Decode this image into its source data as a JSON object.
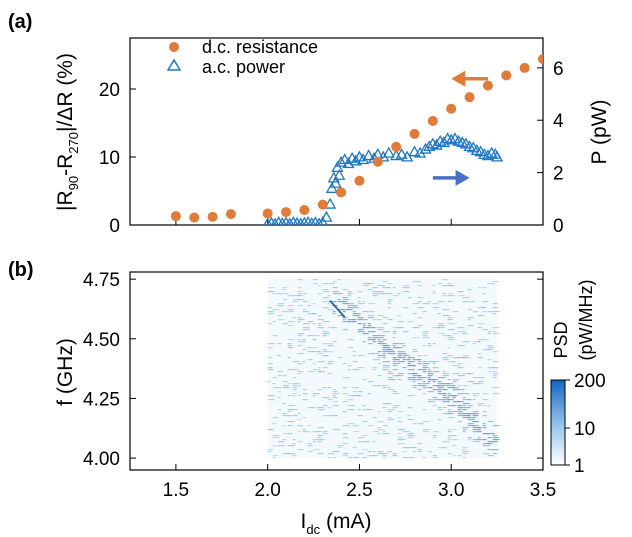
{
  "chart_data": [
    {
      "panel_label": "(a)",
      "type": "scatter",
      "xlim": [
        1.25,
        3.5
      ],
      "ylim_left": [
        0,
        27.5
      ],
      "ylim_right": [
        0,
        7.14
      ],
      "ylabel_left": {
        "main": "|R",
        "sub1": "90",
        "mid": "-R",
        "sub2": "270",
        "tail": "|/ΔR (%)"
      },
      "ylabel_right": "P (pW)",
      "yticks_left": [
        "0",
        "10",
        "20"
      ],
      "yticks_right": [
        "0",
        "2",
        "4",
        "6"
      ],
      "series": [
        {
          "name": "d.c. resistance",
          "axis": "left",
          "color": "#e07b39",
          "marker": "filled-circle",
          "x": [
            1.5,
            1.6,
            1.7,
            1.8,
            2.0,
            2.1,
            2.2,
            2.3,
            2.4,
            2.5,
            2.6,
            2.7,
            2.8,
            2.9,
            3.0,
            3.1,
            3.2,
            3.3,
            3.4,
            3.5
          ],
          "y": [
            1.3,
            1.1,
            1.2,
            1.6,
            1.7,
            1.9,
            2.2,
            3.0,
            4.8,
            6.5,
            9.3,
            11.5,
            13.4,
            15.3,
            17.1,
            18.8,
            20.5,
            22.0,
            23.1,
            24.4
          ]
        },
        {
          "name": "a.c. power",
          "axis": "right",
          "color": "#1f77c4",
          "marker": "open-triangle",
          "x": [
            2.0,
            2.02,
            2.04,
            2.06,
            2.08,
            2.1,
            2.12,
            2.14,
            2.16,
            2.18,
            2.2,
            2.22,
            2.24,
            2.26,
            2.28,
            2.3,
            2.32,
            2.34,
            2.35,
            2.36,
            2.37,
            2.38,
            2.39,
            2.4,
            2.42,
            2.44,
            2.46,
            2.48,
            2.5,
            2.52,
            2.55,
            2.58,
            2.6,
            2.63,
            2.66,
            2.7,
            2.73,
            2.76,
            2.8,
            2.83,
            2.86,
            2.88,
            2.9,
            2.92,
            2.94,
            2.96,
            2.98,
            3.0,
            3.02,
            3.04,
            3.06,
            3.08,
            3.1,
            3.12,
            3.14,
            3.16,
            3.18,
            3.2,
            3.22,
            3.24,
            3.25
          ],
          "y": [
            0.05,
            0.08,
            0.04,
            0.1,
            0.06,
            0.09,
            0.05,
            0.1,
            0.07,
            0.05,
            0.08,
            0.1,
            0.06,
            0.09,
            0.05,
            0.1,
            0.3,
            0.8,
            1.4,
            1.8,
            1.6,
            2.2,
            1.9,
            2.4,
            2.5,
            2.35,
            2.55,
            2.45,
            2.6,
            2.5,
            2.65,
            2.55,
            2.7,
            2.6,
            2.75,
            2.65,
            2.7,
            2.6,
            2.8,
            2.75,
            2.9,
            3.0,
            3.1,
            3.05,
            3.2,
            3.15,
            3.3,
            3.25,
            3.3,
            3.2,
            3.15,
            3.1,
            3.0,
            2.95,
            2.85,
            2.8,
            2.7,
            2.65,
            2.75,
            2.7,
            2.6
          ]
        }
      ],
      "arrows": [
        {
          "direction": "left",
          "color": "#e07b39",
          "x": [
            3.0,
            3.2
          ],
          "axis": "left",
          "y": 21.5
        },
        {
          "direction": "right",
          "color": "#4a6fc8",
          "x": [
            2.9,
            3.1
          ],
          "axis": "right",
          "y": 1.8
        }
      ]
    },
    {
      "panel_label": "(b)",
      "type": "heatmap",
      "xlabel": {
        "main": "I",
        "sub": "dc",
        "tail": " (mA)"
      },
      "ylabel": "f (GHz)",
      "xlim": [
        1.25,
        3.5
      ],
      "ylim": [
        3.95,
        4.78
      ],
      "xticks": [
        "1.5",
        "2.0",
        "2.5",
        "3.0",
        "3.5"
      ],
      "yticks": [
        "4.00",
        "4.25",
        "4.50",
        "4.75"
      ],
      "data_extent": {
        "x": [
          2.0,
          3.25
        ],
        "y": [
          4.0,
          4.75
        ]
      },
      "ridge": {
        "x": [
          2.35,
          2.45,
          2.6,
          2.8,
          3.0,
          3.15,
          3.25
        ],
        "f": [
          4.65,
          4.6,
          4.48,
          4.37,
          4.25,
          4.12,
          4.05
        ]
      },
      "colorbar": {
        "label_line1": "PSD",
        "label_line2": "(pW/MHz)",
        "ticks": [
          "1",
          "10",
          "200"
        ],
        "scale": "log",
        "colors": [
          "#ffffff",
          "#1565c0"
        ]
      }
    }
  ]
}
